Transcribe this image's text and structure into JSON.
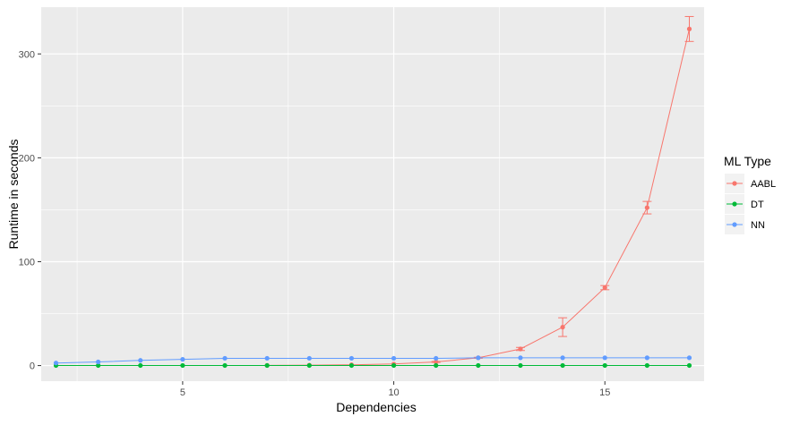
{
  "chart_data": {
    "type": "line",
    "title": "",
    "xlabel": "Dependencies",
    "ylabel": "Runtime in seconds",
    "xlim": [
      1.65,
      17.35
    ],
    "ylim": [
      -15,
      345
    ],
    "x_ticks": [
      5,
      10,
      15
    ],
    "y_ticks": [
      0,
      100,
      200,
      300
    ],
    "grid": true,
    "legend": {
      "title": "ML Type",
      "position": "right"
    },
    "series": [
      {
        "name": "AABL",
        "color": "#F8766D",
        "x": [
          7,
          8,
          9,
          10,
          11,
          12,
          13,
          14,
          15,
          16,
          17
        ],
        "y": [
          0.2,
          0.4,
          0.8,
          1.5,
          3.5,
          7.5,
          16,
          37,
          75,
          152,
          324
        ],
        "err": [
          0,
          0,
          0,
          0,
          0.5,
          0.5,
          1.5,
          9,
          2,
          6,
          12
        ]
      },
      {
        "name": "DT",
        "color": "#00BA38",
        "x": [
          2,
          3,
          4,
          5,
          6,
          7,
          8,
          9,
          10,
          11,
          12,
          13,
          14,
          15,
          16,
          17
        ],
        "y": [
          0.1,
          0.1,
          0.1,
          0.1,
          0.1,
          0.1,
          0.1,
          0.1,
          0.1,
          0.1,
          0.1,
          0.1,
          0.1,
          0.1,
          0.1,
          0.1
        ],
        "err": [
          0,
          0,
          0,
          0,
          0,
          0,
          0,
          0,
          0,
          0,
          0,
          0,
          0,
          0,
          0,
          0
        ]
      },
      {
        "name": "NN",
        "color": "#619CFF",
        "x": [
          2,
          3,
          4,
          5,
          6,
          7,
          8,
          9,
          10,
          11,
          12,
          13,
          14,
          15,
          16,
          17
        ],
        "y": [
          2.5,
          3.5,
          5,
          6,
          7,
          7,
          7,
          7,
          7,
          7,
          7.5,
          7.5,
          7.5,
          7.5,
          7.5,
          7.5
        ],
        "err": [
          0,
          0,
          0,
          0,
          0,
          0,
          0,
          0,
          0,
          0,
          0,
          0,
          0,
          0,
          0,
          0
        ]
      }
    ]
  }
}
